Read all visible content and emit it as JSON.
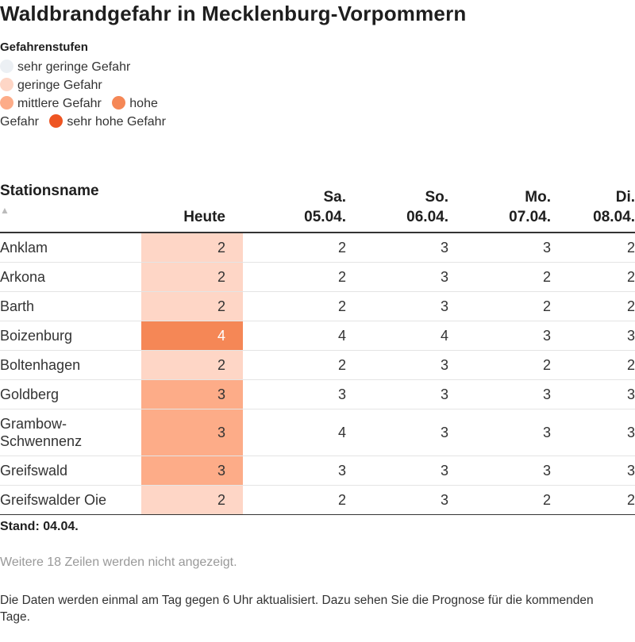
{
  "title": "Waldbrandgefahr in Mecklenburg-Vorpommern",
  "legend": {
    "title": "Gefahrenstufen",
    "items": [
      {
        "label": "sehr geringe Gefahr",
        "color": "#ecf0f4"
      },
      {
        "label": "geringe Gefahr",
        "color": "#fed6c6"
      },
      {
        "label": "mittlere Gefahr",
        "color": "#fdac88"
      },
      {
        "label": "hohe Gefahr",
        "color": "#f58756"
      },
      {
        "label": "sehr hohe Gefahr",
        "color": "#ee5522"
      }
    ]
  },
  "table": {
    "headers": {
      "name": "Stationsname",
      "sort_icon": "sort-up-icon",
      "today": "Heute",
      "d1_line1": "Sa.",
      "d1_line2": "05.04.",
      "d2_line1": "So.",
      "d2_line2": "06.04.",
      "d3_line1": "Mo.",
      "d3_line2": "07.04.",
      "d4_line1": "Di.",
      "d4_line2": "08.04."
    },
    "rows": [
      {
        "name": "Anklam",
        "today": "2",
        "d1": "2",
        "d2": "3",
        "d3": "3",
        "d4": "2",
        "today_color": "#fed6c6",
        "today_text_color": "#333333"
      },
      {
        "name": "Arkona",
        "today": "2",
        "d1": "2",
        "d2": "3",
        "d3": "2",
        "d4": "2",
        "today_color": "#fed6c6",
        "today_text_color": "#333333"
      },
      {
        "name": "Barth",
        "today": "2",
        "d1": "2",
        "d2": "3",
        "d3": "2",
        "d4": "2",
        "today_color": "#fed6c6",
        "today_text_color": "#333333"
      },
      {
        "name": "Boizenburg",
        "today": "4",
        "d1": "4",
        "d2": "4",
        "d3": "3",
        "d4": "3",
        "today_color": "#f58756",
        "today_text_color": "#ffffff"
      },
      {
        "name": "Boltenhagen",
        "today": "2",
        "d1": "2",
        "d2": "3",
        "d3": "2",
        "d4": "2",
        "today_color": "#fed6c6",
        "today_text_color": "#333333"
      },
      {
        "name": "Goldberg",
        "today": "3",
        "d1": "3",
        "d2": "3",
        "d3": "3",
        "d4": "3",
        "today_color": "#fdac88",
        "today_text_color": "#333333"
      },
      {
        "name": "Grambow-Schwennenz",
        "today": "3",
        "d1": "4",
        "d2": "3",
        "d3": "3",
        "d4": "3",
        "today_color": "#fdac88",
        "today_text_color": "#333333"
      },
      {
        "name": "Greifswald",
        "today": "3",
        "d1": "3",
        "d2": "3",
        "d3": "3",
        "d4": "3",
        "today_color": "#fdac88",
        "today_text_color": "#333333"
      },
      {
        "name": "Greifswalder Oie",
        "today": "2",
        "d1": "2",
        "d2": "3",
        "d3": "2",
        "d4": "2",
        "today_color": "#fed6c6",
        "today_text_color": "#333333"
      }
    ]
  },
  "stand": "Stand: 04.04.",
  "more_rows": "Weitere 18 Zeilen werden nicht angezeigt.",
  "note": "Die Daten werden einmal am Tag gegen 6 Uhr aktualisiert. Dazu sehen Sie die Prognose für die kommenden Tage."
}
